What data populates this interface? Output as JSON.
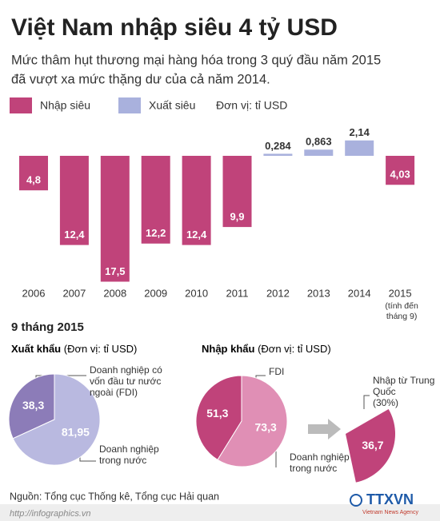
{
  "header": {
    "title": "Việt Nam nhập siêu 4 tỷ USD",
    "subtitle": [
      "Mức thâm hụt thương mại hàng hóa trong 3 quý đầu năm 2015",
      "đã vượt xa mức thặng dư của cả năm 2014."
    ]
  },
  "chart_data": [
    {
      "type": "bar",
      "categories": [
        "2006",
        "2007",
        "2008",
        "2009",
        "2010",
        "2011",
        "2012",
        "2013",
        "2014",
        "2015"
      ],
      "annotation": [
        "(tính đến",
        "tháng 9)"
      ],
      "unit": "Đơn vị: tỉ USD",
      "series": [
        {
          "name": "Nhập siêu",
          "color": "#c0437a",
          "values": [
            -4.8,
            -12.4,
            -17.5,
            -12.2,
            -12.4,
            -9.9,
            null,
            null,
            null,
            -4.03
          ],
          "value_labels": [
            "4,8",
            "12,4",
            "17,5",
            "12,2",
            "12,4",
            "9,9",
            null,
            null,
            null,
            "4,03"
          ]
        },
        {
          "name": "Xuất siêu",
          "color": "#a9b1dd",
          "values": [
            null,
            null,
            null,
            null,
            null,
            null,
            0.284,
            0.863,
            2.14,
            null
          ],
          "value_labels": [
            null,
            null,
            null,
            null,
            null,
            null,
            "0,284",
            "0,863",
            "2,14",
            null
          ]
        }
      ],
      "ylim": [
        -18,
        3
      ]
    },
    {
      "type": "pie",
      "title": "Xuất khẩu",
      "subtitle": "(Đơn vị: tỉ USD)",
      "categories": [
        "Doanh nghiệp có vốn đầu tư nước ngoài (FDI)",
        "Doanh nghiệp trong nước"
      ],
      "values": [
        38.3,
        81.95
      ],
      "value_labels": [
        "38,3",
        "81,95"
      ],
      "colors": [
        "#8c7cb8",
        "#b9b9e0"
      ]
    },
    {
      "type": "pie",
      "title": "Nhập khẩu",
      "subtitle": "(Đơn vị: tỉ USD)",
      "categories": [
        "FDI",
        "Doanh nghiệp trong nước"
      ],
      "values": [
        51.3,
        73.3
      ],
      "value_labels": [
        "51,3",
        "73,3"
      ],
      "colors": [
        "#c0437a",
        "#e08fb5"
      ]
    },
    {
      "type": "wedge",
      "categories": [
        "Nhập từ Trung Quốc"
      ],
      "values": [
        36.7
      ],
      "value_labels": [
        "36,7"
      ],
      "share": 30,
      "share_label": "(30%)",
      "colors": [
        "#c0437a"
      ]
    }
  ],
  "section_title": "9 tháng 2015",
  "footer": {
    "source": "Nguồn: Tổng cục Thống kê, Tổng cục Hải quan",
    "url": "http://infographics.vn",
    "logo": "TTXVN",
    "logo_sub": "Vietnam News Agency"
  }
}
